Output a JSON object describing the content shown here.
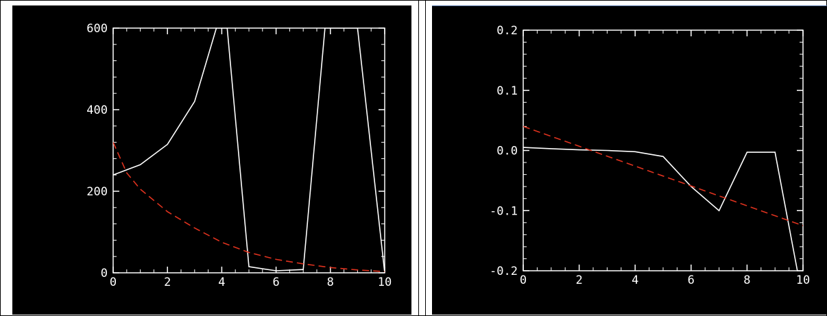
{
  "colors": {
    "background": "#000000",
    "axis": "#ffffff",
    "series_solid": "#ffffff",
    "series_dashed": "#e0321e"
  },
  "chart_data": [
    {
      "type": "line",
      "xlim": [
        0,
        10
      ],
      "ylim": [
        0,
        600
      ],
      "x_ticks": [
        0,
        2,
        4,
        6,
        8,
        10
      ],
      "y_ticks": [
        0,
        200,
        400,
        600
      ],
      "x_tick_labels": [
        "0",
        "2",
        "4",
        "6",
        "8",
        "10"
      ],
      "y_tick_labels": [
        "0",
        "200",
        "400",
        "600"
      ],
      "grid": false,
      "series": [
        {
          "style": "solid",
          "color": "#ffffff",
          "x": [
            0,
            1,
            2,
            3,
            3.8,
            4.2,
            5,
            6,
            7,
            7.8,
            9,
            10
          ],
          "y": [
            240,
            265,
            315,
            420,
            600,
            600,
            15,
            5,
            8,
            600,
            600,
            0
          ]
        },
        {
          "style": "dashed",
          "color": "#e0321e",
          "x": [
            0,
            0.5,
            1,
            2,
            3,
            4,
            5,
            6,
            7,
            8,
            9,
            10
          ],
          "y": [
            320,
            245,
            205,
            150,
            110,
            75,
            50,
            33,
            22,
            13,
            7,
            3
          ]
        }
      ]
    },
    {
      "type": "line",
      "xlim": [
        0,
        10
      ],
      "ylim": [
        -0.2,
        0.2
      ],
      "x_ticks": [
        0,
        2,
        4,
        6,
        8,
        10
      ],
      "y_ticks": [
        -0.2,
        -0.1,
        0.0,
        0.1,
        0.2
      ],
      "x_tick_labels": [
        "0",
        "2",
        "4",
        "6",
        "8",
        "10"
      ],
      "y_tick_labels": [
        "-0.2",
        "-0.1",
        "0.0",
        "0.1",
        "0.2"
      ],
      "grid": false,
      "series": [
        {
          "style": "solid",
          "color": "#ffffff",
          "x": [
            0,
            1,
            2,
            3,
            4,
            5,
            6,
            7,
            8,
            9,
            9.8
          ],
          "y": [
            0.005,
            0.003,
            0.001,
            0.0,
            -0.002,
            -0.01,
            -0.06,
            -0.1,
            -0.003,
            -0.003,
            -0.2
          ]
        },
        {
          "style": "dashed",
          "color": "#e0321e",
          "x": [
            0,
            10
          ],
          "y": [
            0.04,
            -0.125
          ]
        }
      ]
    }
  ]
}
